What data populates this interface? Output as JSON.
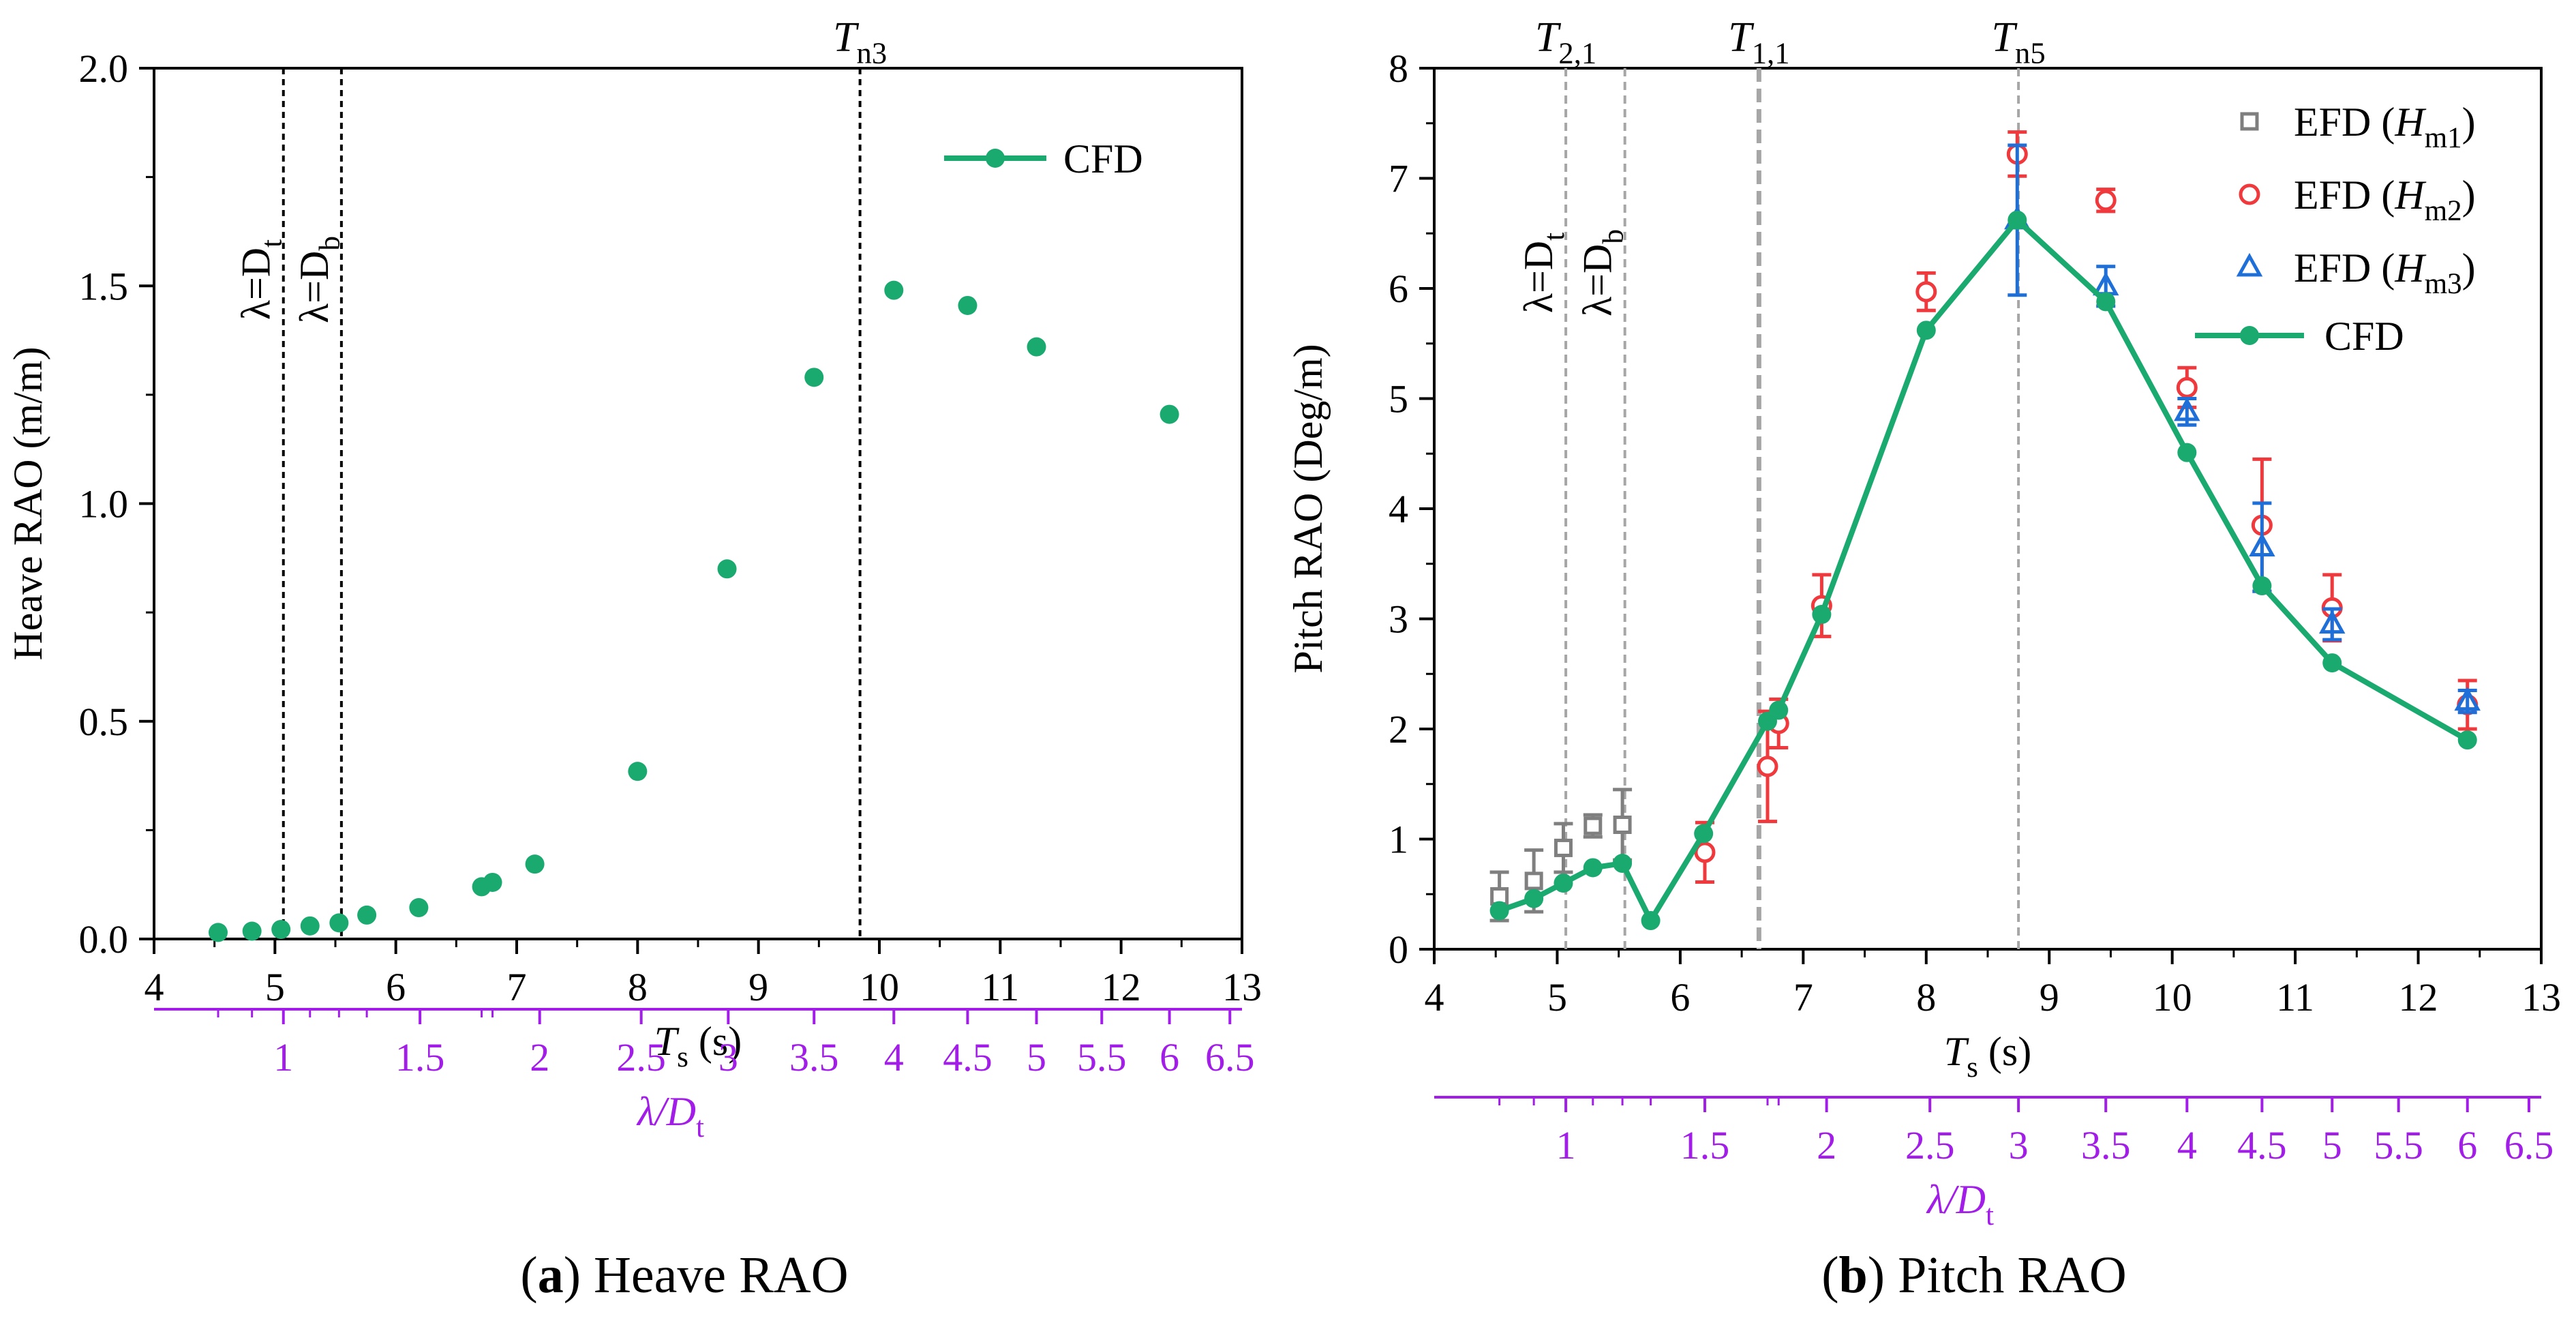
{
  "colors": {
    "cfd": "#1aa96e",
    "efd_hm1": "#7f7f7f",
    "efd_hm2": "#f0393c",
    "efd_hm3": "#1f6fd9",
    "wavelength_axis": "#a21ee8",
    "ref_line_a": "#000000",
    "ref_line_b": "#a6a6a6"
  },
  "chart_data": [
    {
      "id": "heave",
      "type": "line",
      "caption": {
        "letter": "a",
        "text": "Heave RAO"
      },
      "xlabel": {
        "main": "T",
        "sub": "s",
        "unit": "(s)"
      },
      "ylabel": "Heave RAO (m/m)",
      "xlim": [
        4,
        13
      ],
      "ylim": [
        0,
        2.0
      ],
      "x_ticks": [
        "4",
        "5",
        "6",
        "7",
        "8",
        "9",
        "10",
        "11",
        "12",
        "13"
      ],
      "y_ticks": [
        "0.0",
        "0.5",
        "1.0",
        "1.5",
        "2.0"
      ],
      "legend": {
        "position": "top-right",
        "entries": [
          "CFD"
        ]
      },
      "series": [
        {
          "name": "CFD",
          "color_key": "cfd",
          "x": [
            4.53,
            4.81,
            5.05,
            5.29,
            5.53,
            5.76,
            6.19,
            6.71,
            6.8,
            7.15,
            8.0,
            8.74,
            9.46,
            10.12,
            10.73,
            11.3,
            12.4
          ],
          "y": [
            0.015,
            0.018,
            0.022,
            0.03,
            0.037,
            0.055,
            0.072,
            0.12,
            0.13,
            0.172,
            0.385,
            0.85,
            1.29,
            1.49,
            1.455,
            1.36,
            1.205
          ]
        }
      ],
      "ref_lines": [
        {
          "x": 5.07,
          "style": "black",
          "label": "λ=Dt",
          "label_main": "λ=D",
          "label_sub": "t",
          "label_pos": "rotated"
        },
        {
          "x": 5.55,
          "style": "black",
          "label": "λ=Db",
          "label_main": "λ=D",
          "label_sub": "b",
          "label_pos": "rotated"
        },
        {
          "x": 9.84,
          "style": "black",
          "label": "Tn3",
          "label_main": "T",
          "label_sub": "n3",
          "label_pos": "top"
        }
      ],
      "secondary_axis": {
        "label": {
          "main": "λ/D",
          "sub": "t"
        },
        "ticks": [
          {
            "label": "1",
            "value": 1.0,
            "x": 5.07
          },
          {
            "label": "1.5",
            "value": 1.5,
            "x": 6.2
          },
          {
            "label": "2",
            "value": 2.0,
            "x": 7.19
          },
          {
            "label": "2.5",
            "value": 2.5,
            "x": 8.03
          },
          {
            "label": "3",
            "value": 3.0,
            "x": 8.75
          },
          {
            "label": "3.5",
            "value": 3.5,
            "x": 9.46
          },
          {
            "label": "4",
            "value": 4.0,
            "x": 10.12
          },
          {
            "label": "4.5",
            "value": 4.5,
            "x": 10.73
          },
          {
            "label": "5",
            "value": 5.0,
            "x": 11.3
          },
          {
            "label": "5.5",
            "value": 5.5,
            "x": 11.84
          },
          {
            "label": "6",
            "value": 6.0,
            "x": 12.4
          },
          {
            "label": "6.5",
            "value": 6.5,
            "x": 12.9
          }
        ],
        "minor_x": [
          4.53,
          4.81,
          5.29,
          5.53,
          5.76,
          6.71,
          6.8
        ]
      }
    },
    {
      "id": "pitch",
      "type": "line",
      "caption": {
        "letter": "b",
        "text": "Pitch RAO"
      },
      "xlabel": {
        "main": "T",
        "sub": "s",
        "unit": "(s)"
      },
      "ylabel": "Pitch RAO (Deg/m)",
      "xlim": [
        4,
        13
      ],
      "ylim": [
        0,
        8
      ],
      "x_ticks": [
        "4",
        "5",
        "6",
        "7",
        "8",
        "9",
        "10",
        "11",
        "12",
        "13"
      ],
      "y_ticks": [
        "0",
        "1",
        "2",
        "3",
        "4",
        "5",
        "6",
        "7",
        "8"
      ],
      "legend": {
        "position": "top-right",
        "entries": [
          "EFD (Hm1)",
          "EFD (Hm2)",
          "EFD (Hm3)",
          "CFD"
        ]
      },
      "series": [
        {
          "name": "EFD (Hm1)",
          "legend_main": "EFD (",
          "legend_h": "H",
          "legend_sub": "m1",
          "marker": "square",
          "color_key": "efd_hm1",
          "line": false,
          "x": [
            4.53,
            4.81,
            5.05,
            5.29,
            5.53
          ],
          "y": [
            0.48,
            0.62,
            0.92,
            1.12,
            1.13
          ],
          "err": [
            0.22,
            0.28,
            0.22,
            0.1,
            0.32
          ]
        },
        {
          "name": "EFD (Hm2)",
          "legend_main": "EFD (",
          "legend_h": "H",
          "legend_sub": "m2",
          "marker": "circle",
          "color_key": "efd_hm2",
          "line": false,
          "x": [
            6.2,
            6.71,
            6.8,
            7.15,
            8.0,
            8.74,
            9.46,
            10.12,
            10.73,
            11.3,
            12.4
          ],
          "y": [
            0.88,
            1.66,
            2.05,
            3.12,
            5.97,
            7.22,
            6.8,
            5.1,
            3.85,
            3.1,
            2.22
          ],
          "err": [
            0.27,
            0.5,
            0.22,
            0.28,
            0.17,
            0.2,
            0.1,
            0.18,
            0.6,
            0.3,
            0.22
          ]
        },
        {
          "name": "EFD (Hm3)",
          "legend_main": "EFD (",
          "legend_h": "H",
          "legend_sub": "m3",
          "marker": "triangle",
          "color_key": "efd_hm3",
          "line": false,
          "x": [
            8.74,
            9.46,
            10.12,
            10.73,
            11.3,
            12.4
          ],
          "y": [
            6.62,
            6.02,
            4.88,
            3.65,
            2.95,
            2.25
          ],
          "err": [
            0.68,
            0.18,
            0.12,
            0.4,
            0.14,
            0.1
          ]
        },
        {
          "name": "CFD",
          "marker": "filled-circle",
          "color_key": "cfd",
          "line": true,
          "x": [
            4.53,
            4.81,
            5.05,
            5.29,
            5.53,
            5.76,
            6.19,
            6.71,
            6.8,
            7.15,
            8.0,
            8.74,
            9.46,
            10.12,
            10.73,
            11.3,
            12.4
          ],
          "y": [
            0.35,
            0.46,
            0.6,
            0.74,
            0.78,
            0.26,
            1.05,
            2.07,
            2.17,
            3.04,
            5.62,
            6.62,
            5.88,
            4.51,
            3.3,
            2.6,
            1.9
          ]
        }
      ],
      "ref_lines": [
        {
          "x": 5.07,
          "style": "grey-thin",
          "label": "T2,1",
          "label_main": "T",
          "label_sub": "2,1",
          "label_pos": "top",
          "rot_label": "λ=Dt",
          "rot_main": "λ=D",
          "rot_sub": "t"
        },
        {
          "x": 5.55,
          "style": "grey-thin",
          "label": "λ=Db",
          "label_main": "λ=D",
          "label_sub": "b",
          "label_pos": "rotated"
        },
        {
          "x": 6.64,
          "style": "grey-thick",
          "label": "T1,1",
          "label_main": "T",
          "label_sub": "1,1",
          "label_pos": "top"
        },
        {
          "x": 8.75,
          "style": "grey-thin",
          "label": "Tn5",
          "label_main": "T",
          "label_sub": "n5",
          "label_pos": "top"
        }
      ],
      "secondary_axis": {
        "label": {
          "main": "λ/D",
          "sub": "t"
        },
        "ticks": [
          {
            "label": "1",
            "value": 1.0,
            "x": 5.07
          },
          {
            "label": "1.5",
            "value": 1.5,
            "x": 6.2
          },
          {
            "label": "2",
            "value": 2.0,
            "x": 7.19
          },
          {
            "label": "2.5",
            "value": 2.5,
            "x": 8.03
          },
          {
            "label": "3",
            "value": 3.0,
            "x": 8.75
          },
          {
            "label": "3.5",
            "value": 3.5,
            "x": 9.46
          },
          {
            "label": "4",
            "value": 4.0,
            "x": 10.12
          },
          {
            "label": "4.5",
            "value": 4.5,
            "x": 10.73
          },
          {
            "label": "5",
            "value": 5.0,
            "x": 11.3
          },
          {
            "label": "5.5",
            "value": 5.5,
            "x": 11.84
          },
          {
            "label": "6",
            "value": 6.0,
            "x": 12.4
          },
          {
            "label": "6.5",
            "value": 6.5,
            "x": 12.9
          }
        ],
        "minor_x": [
          4.53,
          4.81,
          5.29,
          5.53,
          5.76,
          6.71,
          6.8
        ]
      }
    }
  ]
}
